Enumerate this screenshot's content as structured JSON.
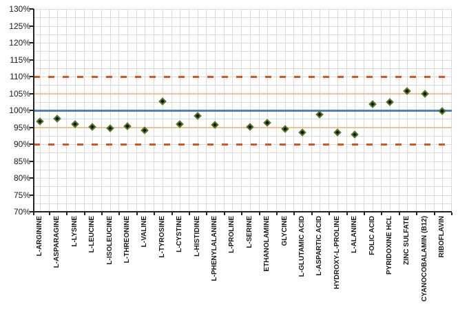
{
  "chart_data": {
    "type": "scatter",
    "title": "",
    "xlabel": "",
    "ylabel": "",
    "y_axis": {
      "min": 70,
      "max": 130,
      "major_step": 5,
      "minor_step": 2.5,
      "format": "percent"
    },
    "y_tick_labels": [
      "130%",
      "125%",
      "120%",
      "115%",
      "110%",
      "105%",
      "100%",
      "95%",
      "90%",
      "85%",
      "80%",
      "75%",
      "70%"
    ],
    "categories": [
      "L-ARGININE",
      "L-ASPARAGINE",
      "L-LYSINE",
      "L-LEUCINE",
      "L-ISOLEUCINE",
      "L-THREONINE",
      "L-VALINE",
      "L-TYROSINE",
      "L-CYSTINE",
      "L-HISTIDINE",
      "L-PHENYLALANINE",
      "L-PROLINE",
      "L-SERINE",
      "ETHANOLAMINE",
      "GLYCINE",
      "L-GLUTAMIC ACID",
      "L-ASPARTIC ACID",
      "HYDROXY-L-PROLINE",
      "L-ALANINE",
      "FOLIC ACID",
      "PYRIDOXINE HCL",
      "ZINC SULFATE",
      "CYANOCOBALAMIN (B12)",
      "RIBOFLAVIN"
    ],
    "values": [
      96.7,
      97.5,
      96.0,
      95.1,
      94.7,
      95.4,
      94.0,
      102.7,
      95.9,
      98.4,
      95.8,
      null,
      95.1,
      96.3,
      94.4,
      93.4,
      98.8,
      93.5,
      92.8,
      101.8,
      102.5,
      105.7,
      104.8,
      99.8
    ],
    "reference_lines": [
      {
        "value": 110,
        "style": "dashed",
        "color": "#d5571e",
        "thickness": 3
      },
      {
        "value": 105,
        "style": "solid",
        "color": "#f3c193",
        "thickness": 2
      },
      {
        "value": 100,
        "style": "solid",
        "color": "#4f81bd",
        "thickness": 3
      },
      {
        "value": 95,
        "style": "solid",
        "color": "#f3c193",
        "thickness": 2
      },
      {
        "value": 90,
        "style": "dashed",
        "color": "#d5571e",
        "thickness": 3
      }
    ],
    "marker": {
      "shape": "diamond",
      "fill": "#0b0b0b",
      "outline": "#527d1e"
    },
    "grid": {
      "color": "#dadada",
      "vertical": true,
      "horizontal": true
    },
    "legend": "none"
  }
}
